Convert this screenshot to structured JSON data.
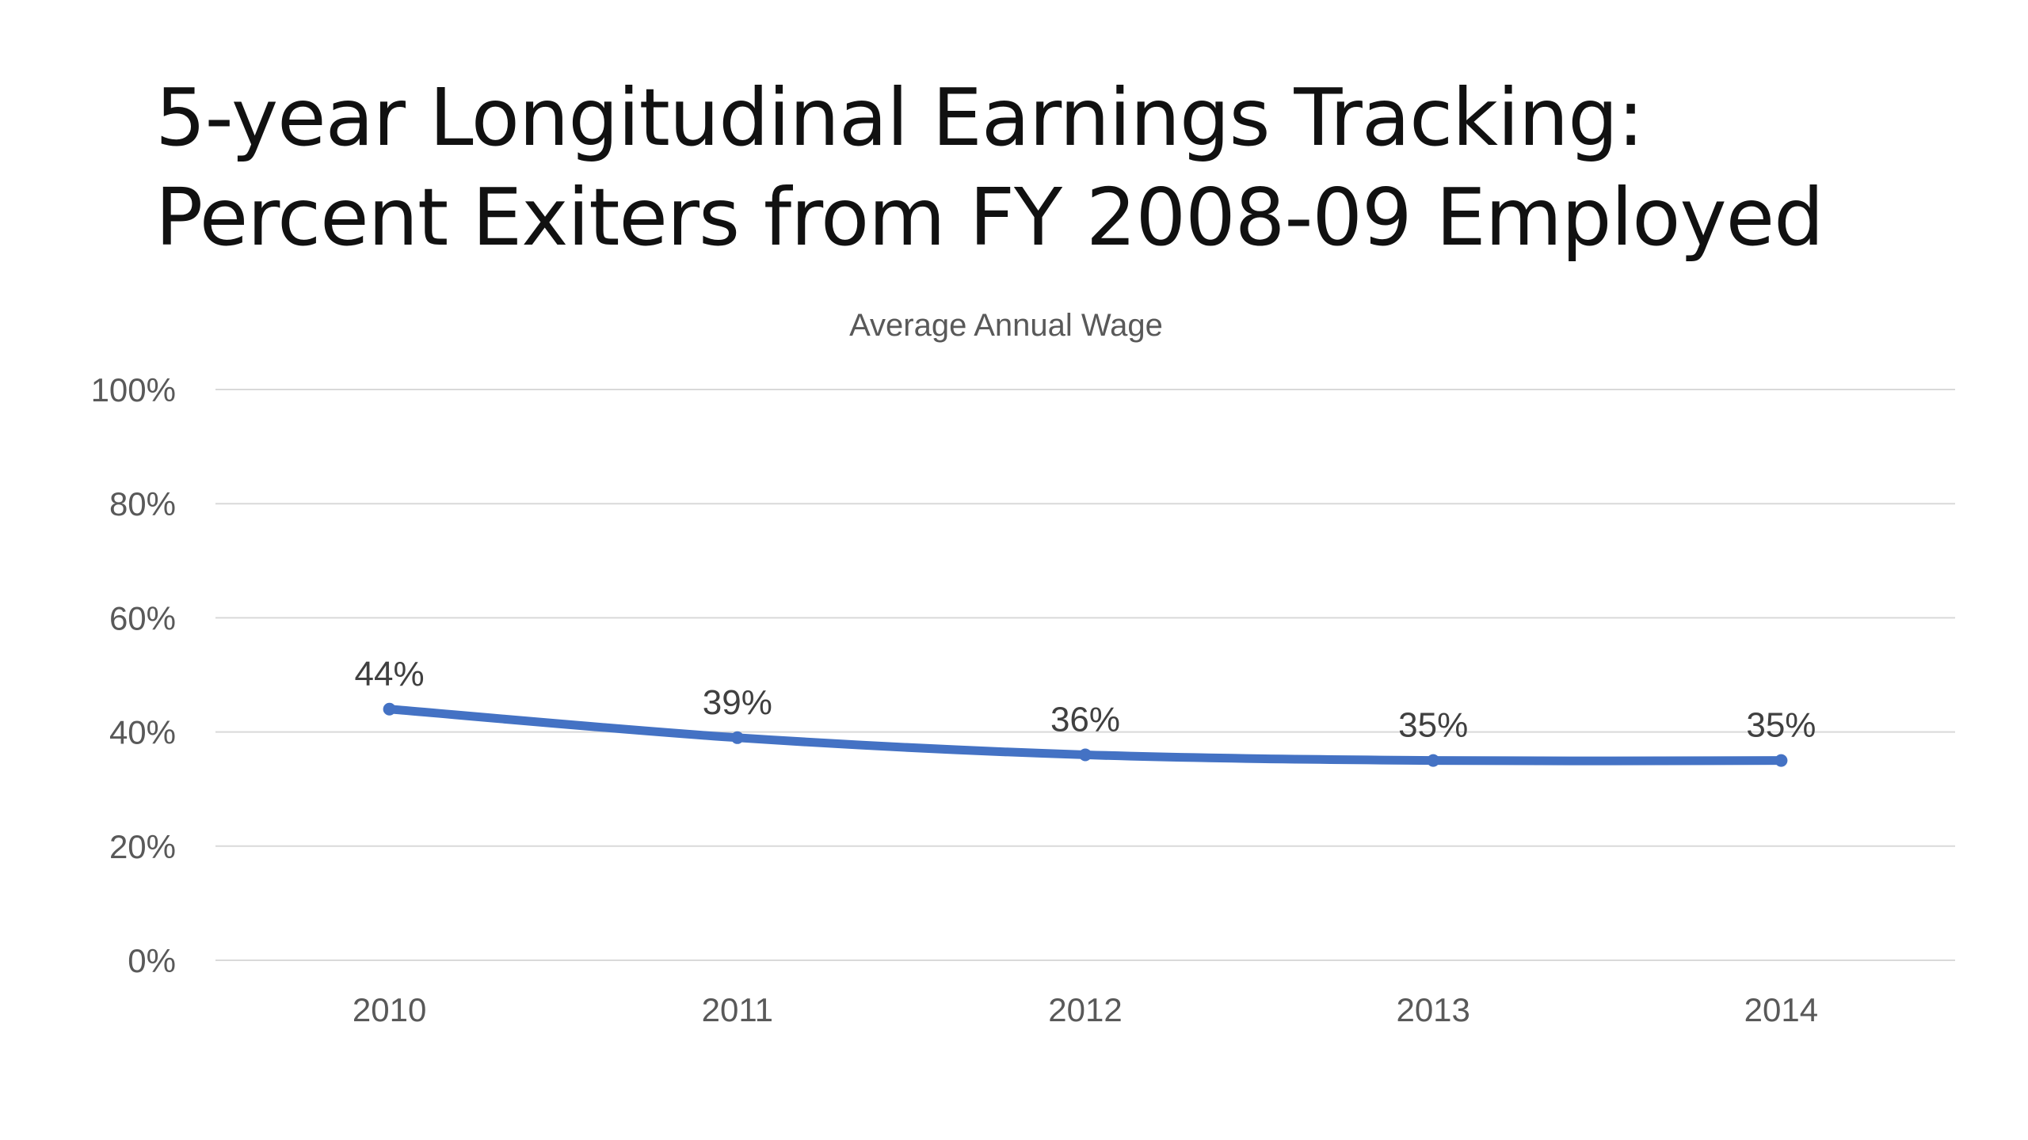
{
  "slide": {
    "title_line1": "5-year Longitudinal Earnings Tracking:",
    "title_line2": "Percent Exiters from FY 2008-09 Employed"
  },
  "chart_data": {
    "type": "line",
    "title": "Average Annual Wage",
    "xlabel": "",
    "ylabel": "",
    "categories": [
      "2010",
      "2011",
      "2012",
      "2013",
      "2014"
    ],
    "series": [
      {
        "values": [
          44,
          39,
          36,
          35,
          35
        ],
        "labels": [
          "44%",
          "39%",
          "36%",
          "35%",
          "35%"
        ],
        "color": "#4472C4"
      }
    ],
    "ylim": [
      0,
      100
    ],
    "yticks": [
      0,
      20,
      40,
      60,
      80,
      100
    ],
    "ytick_labels": [
      "0%",
      "20%",
      "40%",
      "60%",
      "80%",
      "100%"
    ],
    "grid": true,
    "legend": "none",
    "gridline_color": "#D9D9D9"
  }
}
